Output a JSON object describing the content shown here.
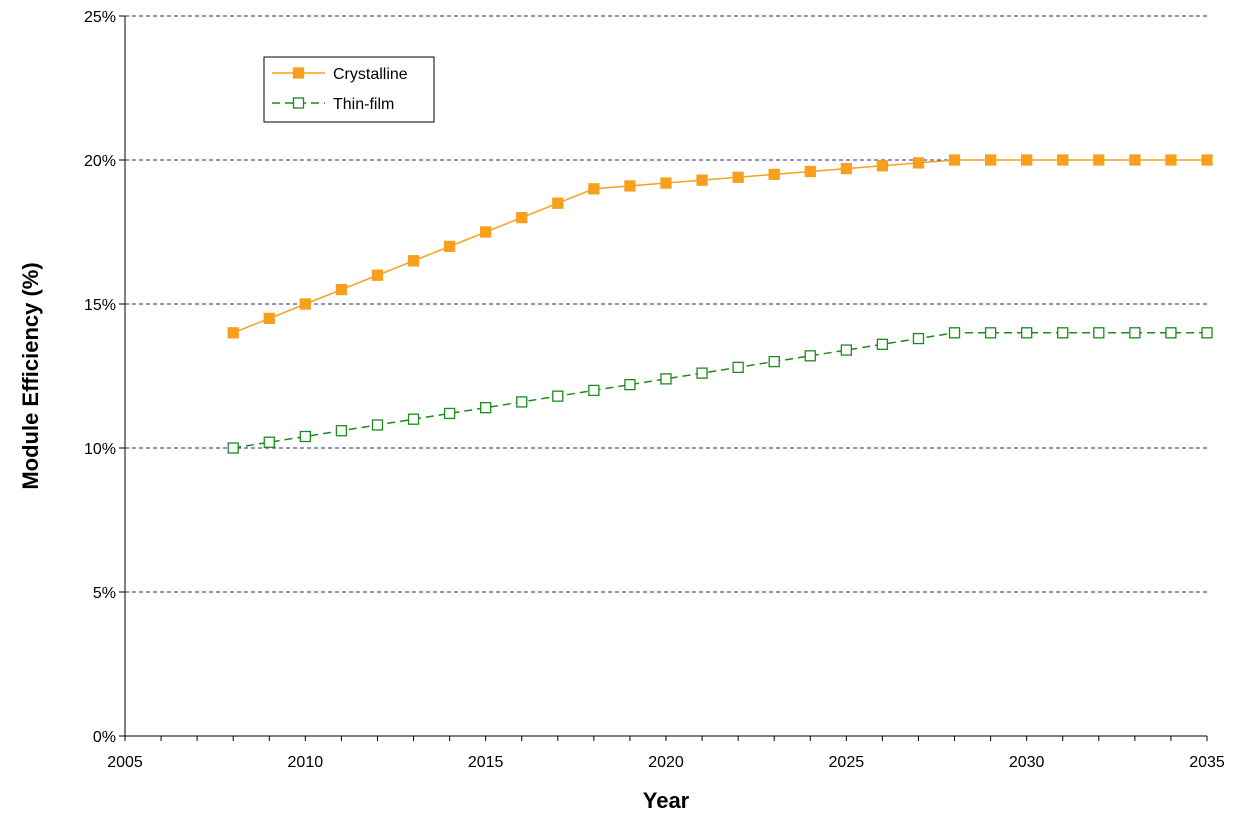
{
  "chart_data": {
    "type": "line",
    "title": "",
    "xlabel": "Year",
    "ylabel": "Module Efficiency (%)",
    "xlim": [
      2005,
      2035
    ],
    "ylim": [
      0,
      25
    ],
    "x_ticks": [
      "2005",
      "2010",
      "2015",
      "2020",
      "2025",
      "2030",
      "2035"
    ],
    "y_ticks": [
      "0%",
      "5%",
      "10%",
      "15%",
      "20%",
      "25%"
    ],
    "grid": "horizontal dashed",
    "legend_position": "top-left",
    "x": [
      2008,
      2009,
      2010,
      2011,
      2012,
      2013,
      2014,
      2015,
      2016,
      2017,
      2018,
      2019,
      2020,
      2021,
      2022,
      2023,
      2024,
      2025,
      2026,
      2027,
      2028,
      2029,
      2030,
      2031,
      2032,
      2033,
      2034,
      2035
    ],
    "series": [
      {
        "name": "Crystalline",
        "color": "#f7a01d",
        "marker": "filled-square",
        "line_style": "solid",
        "values": [
          14.0,
          14.5,
          15.0,
          15.5,
          16.0,
          16.5,
          17.0,
          17.5,
          18.0,
          18.5,
          19.0,
          19.1,
          19.2,
          19.3,
          19.4,
          19.5,
          19.6,
          19.7,
          19.8,
          19.9,
          20.0,
          20.0,
          20.0,
          20.0,
          20.0,
          20.0,
          20.0,
          20.0
        ]
      },
      {
        "name": "Thin-film",
        "color": "#1c8a1c",
        "marker": "open-square",
        "line_style": "dashed",
        "values": [
          10.0,
          10.2,
          10.4,
          10.6,
          10.8,
          11.0,
          11.2,
          11.4,
          11.6,
          11.8,
          12.0,
          12.2,
          12.4,
          12.6,
          12.8,
          13.0,
          13.2,
          13.4,
          13.6,
          13.8,
          14.0,
          14.0,
          14.0,
          14.0,
          14.0,
          14.0,
          14.0,
          14.0
        ]
      }
    ]
  }
}
